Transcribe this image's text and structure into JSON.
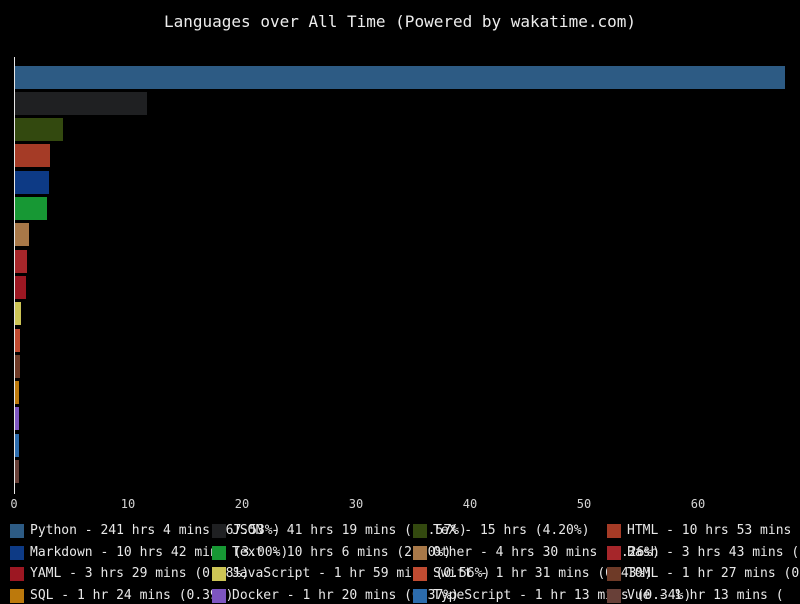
{
  "title": "Languages over All Time (Powered by wakatime.com)",
  "chart_data": {
    "type": "bar",
    "orientation": "horizontal",
    "title": "Languages over All Time (Powered by wakatime.com)",
    "xlabel": "",
    "ylabel": "",
    "unit": "percent of total coding time",
    "xlim": [
      0,
      69
    ],
    "x_ticks": [
      0,
      10,
      20,
      30,
      40,
      50,
      60
    ],
    "grid": false,
    "legend_position": "bottom, 4 columns",
    "background_color": "#000000",
    "axis_color": "#e6e6e6",
    "languages": [
      {
        "name": "Python",
        "time": "241 hrs 4 mins",
        "percent": 67.53,
        "color": "#2d5b84",
        "legend_label": "Python - 241 hrs 4 mins (67.53%)"
      },
      {
        "name": "JSON",
        "time": "41 hrs 19 mins",
        "percent": 11.57,
        "color": "#1f2022",
        "legend_label": "JSON - 41 hrs 19 mins (11.57%)"
      },
      {
        "name": "TeX",
        "time": "15 hrs",
        "percent": 4.2,
        "color": "#33490f",
        "legend_label": "TeX - 15 hrs (4.20%)"
      },
      {
        "name": "HTML",
        "time": "10 hrs 53 mins",
        "percent": 3.05,
        "color": "#a53b26",
        "legend_label": "HTML - 10 hrs 53 mins"
      },
      {
        "name": "Markdown",
        "time": "10 hrs 42 mins",
        "percent": 3.0,
        "color": "#0d3a85",
        "legend_label": "Markdown - 10 hrs 42 mins (3.00%)"
      },
      {
        "name": "Text",
        "time": "10 hrs 6 mins",
        "percent": 2.8,
        "color": "#179834",
        "legend_label": "Text - 10 hrs 6 mins (2.80%)"
      },
      {
        "name": "Other",
        "time": "4 hrs 30 mins",
        "percent": 1.26,
        "color": "#a87848",
        "legend_label": "Other - 4 hrs 30 mins (1.26%)"
      },
      {
        "name": "Bash",
        "time": "3 hrs 43 mins",
        "percent": 1.04,
        "color": "#a6262a",
        "legend_label": "Bash - 3 hrs 43 mins ("
      },
      {
        "name": "YAML",
        "time": "3 hrs 29 mins",
        "percent": 0.98,
        "color": "#9c1722",
        "legend_label": "YAML - 3 hrs 29 mins (0.98%)"
      },
      {
        "name": "JavaScript",
        "time": "1 hr 59 mins",
        "percent": 0.56,
        "color": "#ccc455",
        "legend_label": "JavaScript - 1 hr 59 mins (0.56%)"
      },
      {
        "name": "Swift",
        "time": "1 hr 31 mins",
        "percent": 0.43,
        "color": "#c04b31",
        "legend_label": "Swift - 1 hr 31 mins (0.43%)"
      },
      {
        "name": "TOML",
        "time": "1 hr 27 mins",
        "percent": 0.41,
        "color": "#6e3a27",
        "legend_label": "TOML - 1 hr 27 mins (0"
      },
      {
        "name": "SQL",
        "time": "1 hr 24 mins",
        "percent": 0.39,
        "color": "#bc790c",
        "legend_label": "SQL - 1 hr 24 mins (0.39%)"
      },
      {
        "name": "Docker",
        "time": "1 hr 20 mins",
        "percent": 0.37,
        "color": "#7d55c0",
        "legend_label": "Docker - 1 hr 20 mins (0.37%)"
      },
      {
        "name": "TypeScript",
        "time": "1 hr 13 mins",
        "percent": 0.34,
        "color": "#2c6cad",
        "legend_label": "TypeScript - 1 hr 13 mins (0.34%)"
      },
      {
        "name": "Vue",
        "time": "1 hr 13 mins",
        "percent": 0.34,
        "color": "#684038",
        "legend_label": "Vue - 1 hr 13 mins ("
      }
    ]
  }
}
